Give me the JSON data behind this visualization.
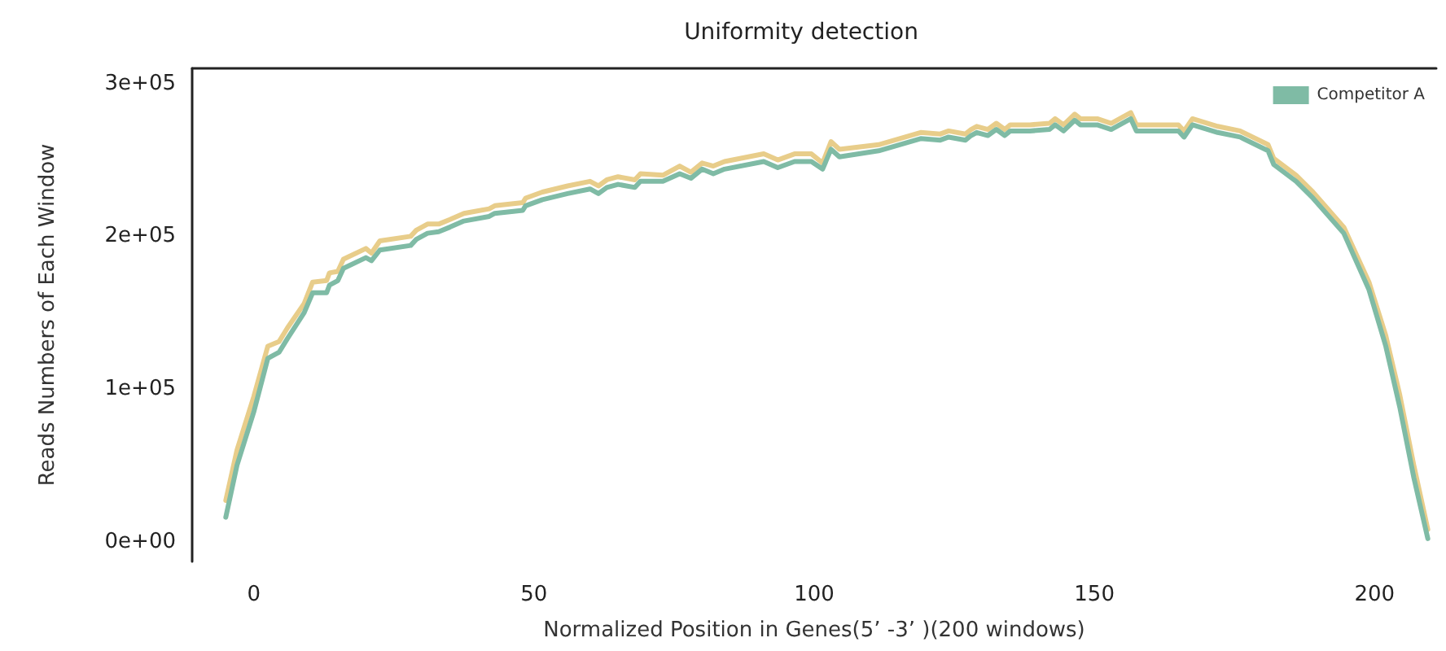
{
  "chart_data": {
    "type": "line",
    "title": "Uniformity detection",
    "xlabel": "Normalized Position in Genes(5’ -3’ )(200 windows)",
    "ylabel": "Reads Numbers of Each Window",
    "x": [
      -5,
      -3,
      0,
      2.5,
      4.5,
      6,
      9,
      10.5,
      13,
      13.5,
      15,
      16,
      20,
      21,
      22.5,
      28,
      29,
      31,
      33,
      35,
      37.5,
      42,
      43,
      48,
      48.5,
      51.5,
      56,
      60,
      61.5,
      63,
      65,
      68,
      69,
      73,
      76,
      78,
      80,
      82,
      84,
      91,
      93.5,
      96.5,
      99.5,
      101.5,
      103,
      104.5,
      111.5,
      119,
      122.5,
      124,
      127,
      128,
      129,
      131,
      132.5,
      134,
      135,
      138.5,
      142,
      143,
      144.5,
      146.5,
      147.5,
      150.5,
      153,
      156.5,
      157.5,
      165,
      166,
      167.5,
      172,
      176,
      181,
      182,
      186,
      189,
      194.5,
      199,
      202,
      204.5,
      207,
      209.5
    ],
    "series": [
      {
        "color": "#e8cd8a",
        "values": [
          27000,
          60000,
          95000,
          128000,
          131000,
          140000,
          156000,
          170000,
          171000,
          176000,
          177000,
          185000,
          192000,
          189000,
          197000,
          200000,
          204000,
          208000,
          208000,
          211000,
          215000,
          218000,
          220000,
          222000,
          225000,
          229000,
          233000,
          236000,
          233000,
          237000,
          239000,
          237000,
          241000,
          240000,
          246000,
          242000,
          248000,
          246000,
          249000,
          254000,
          250000,
          254000,
          254000,
          248000,
          262000,
          257000,
          260000,
          268000,
          267000,
          269000,
          267000,
          270000,
          272000,
          270000,
          274000,
          270000,
          273000,
          273000,
          274000,
          277000,
          273000,
          280000,
          277000,
          277000,
          274000,
          281000,
          273000,
          273000,
          269000,
          277000,
          272000,
          269000,
          260000,
          251000,
          240000,
          229000,
          206000,
          170000,
          135000,
          96000,
          50000,
          8000
        ]
      },
      {
        "name": "Competitor A",
        "color": "#7fbba5",
        "values": [
          16000,
          50000,
          85000,
          120000,
          124000,
          133000,
          150000,
          163000,
          163000,
          168000,
          171000,
          179000,
          186000,
          184000,
          191000,
          194000,
          198000,
          202000,
          203000,
          206000,
          210000,
          213000,
          215000,
          217000,
          220000,
          224000,
          228000,
          231000,
          228000,
          232000,
          234000,
          232000,
          236000,
          236000,
          241000,
          238000,
          244000,
          241000,
          244000,
          249000,
          245000,
          249000,
          249000,
          244000,
          257000,
          252000,
          256000,
          264000,
          263000,
          265000,
          263000,
          266000,
          268000,
          266000,
          270000,
          266000,
          269000,
          269000,
          270000,
          273000,
          269000,
          276000,
          273000,
          273000,
          270000,
          277000,
          269000,
          269000,
          265000,
          273000,
          268000,
          265000,
          256000,
          247000,
          236000,
          225000,
          202000,
          165000,
          128000,
          88000,
          42000,
          2000
        ]
      }
    ],
    "xlim": [
      -11,
      211
    ],
    "xticks": [
      0,
      50,
      100,
      150,
      200
    ],
    "ylim": [
      -13000,
      310000
    ],
    "yticks": [
      {
        "value": 0,
        "label": "0e+00"
      },
      {
        "value": 100000,
        "label": "1e+05"
      },
      {
        "value": 200000,
        "label": "2e+05"
      },
      {
        "value": 300000,
        "label": "3e+05"
      }
    ],
    "grid": false,
    "legend": "top right",
    "marker": "none",
    "line_style": "solid"
  }
}
